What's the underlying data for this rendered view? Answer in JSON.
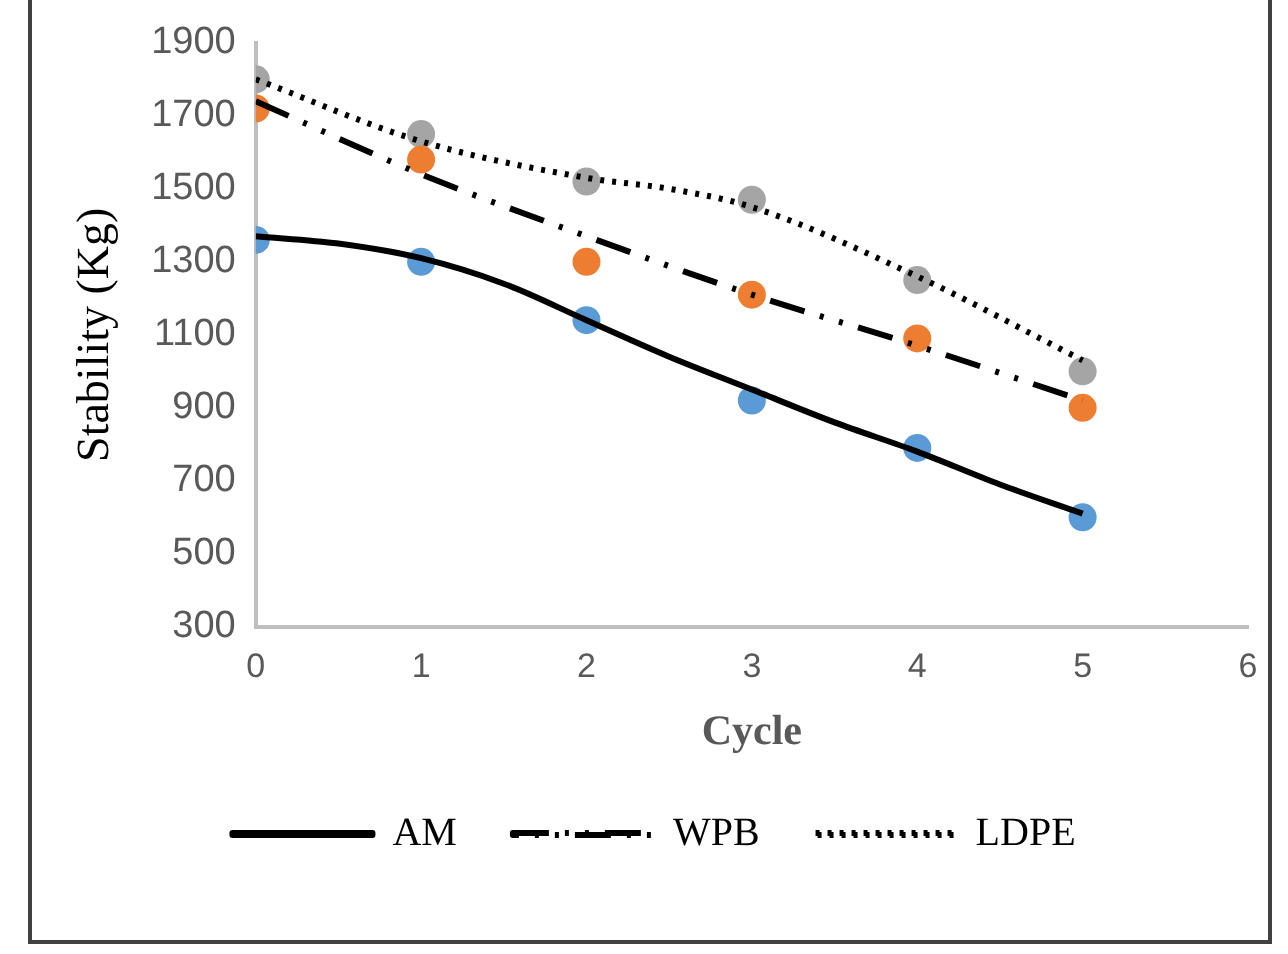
{
  "chart_data": {
    "type": "scatter",
    "xlabel": "Cycle",
    "ylabel": "Stability (Kg)",
    "xlim": [
      0,
      6
    ],
    "xticks": [
      0,
      1,
      2,
      3,
      4,
      5,
      6
    ],
    "ylim": [
      300,
      1900
    ],
    "yticks": [
      300,
      500,
      700,
      900,
      1100,
      1300,
      1500,
      1700,
      1900
    ],
    "grid": false,
    "legend": "bottom",
    "marker": "circle",
    "series": [
      {
        "color": "#5b9bd5",
        "x": [
          0,
          1,
          2,
          3,
          4,
          5
        ],
        "values": [
          1360,
          1300,
          1140,
          920,
          790,
          600
        ]
      },
      {
        "color": "#ed7d31",
        "x": [
          0,
          1,
          2,
          3,
          4,
          5
        ],
        "values": [
          1720,
          1580,
          1300,
          1210,
          1090,
          900
        ]
      },
      {
        "color": "#a5a5a5",
        "x": [
          0,
          1,
          2,
          3,
          4,
          5
        ],
        "values": [
          1800,
          1650,
          1520,
          1470,
          1250,
          1000
        ]
      },
      {
        "type": "line",
        "name": "AM",
        "color": "#000000",
        "line_style": "solid",
        "marker": "none",
        "x": [
          0,
          0.5,
          1,
          1.5,
          2,
          2.5,
          3,
          3.5,
          4,
          4.5,
          5
        ],
        "values": [
          1370,
          1350,
          1310,
          1240,
          1140,
          1040,
          950,
          860,
          780,
          690,
          610
        ]
      },
      {
        "type": "line",
        "name": "WPB",
        "color": "#000000",
        "line_style": "dashdot",
        "marker": "none",
        "x": [
          0,
          1,
          2,
          3,
          4,
          5
        ],
        "values": [
          1740,
          1540,
          1370,
          1210,
          1070,
          920
        ]
      },
      {
        "type": "line",
        "name": "LDPE",
        "color": "#000000",
        "line_style": "dotted",
        "marker": "none",
        "x": [
          0,
          1,
          2,
          2.5,
          3,
          4,
          5
        ],
        "values": [
          1800,
          1630,
          1530,
          1500,
          1450,
          1260,
          1030
        ]
      }
    ]
  }
}
